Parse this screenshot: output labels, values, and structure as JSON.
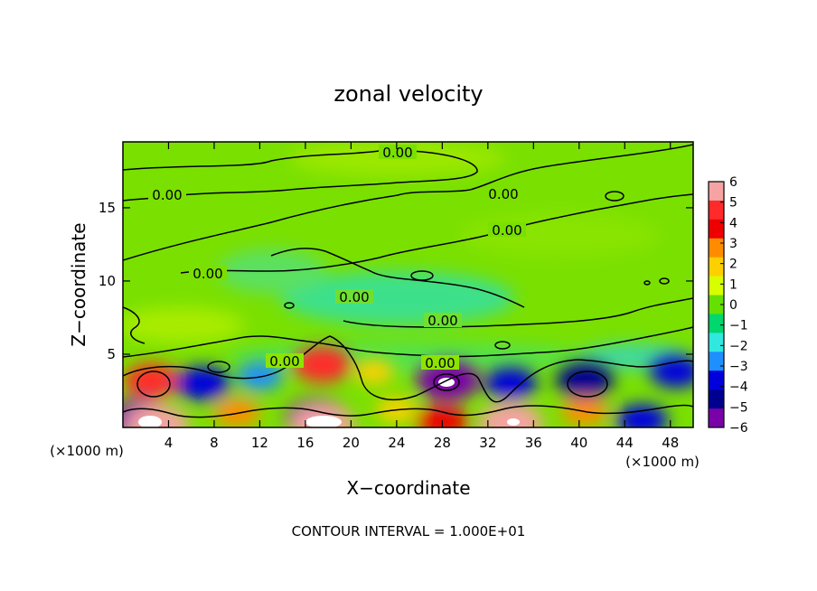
{
  "chart_data": {
    "type": "heatmap",
    "title": "zonal velocity",
    "xlabel": "X−coordinate",
    "ylabel": "Z−coordinate",
    "x_unit_label": "(×1000 m)",
    "y_unit_label": "(×1000 m)",
    "xlim": [
      0,
      50
    ],
    "ylim": [
      0,
      19.5
    ],
    "x_ticks": [
      "4",
      "8",
      "12",
      "16",
      "20",
      "24",
      "28",
      "32",
      "36",
      "40",
      "44",
      "48"
    ],
    "x_tick_values": [
      4,
      8,
      12,
      16,
      20,
      24,
      28,
      32,
      36,
      40,
      44,
      48
    ],
    "y_ticks": [
      "5",
      "10",
      "15"
    ],
    "y_tick_values": [
      5,
      10,
      15
    ],
    "colorbar": {
      "labels": [
        "6",
        "5",
        "4",
        "3",
        "2",
        "1",
        "0",
        "−1",
        "−2",
        "−3",
        "−4",
        "−5",
        "−6"
      ],
      "values": [
        6,
        5,
        4,
        3,
        2,
        1,
        0,
        -1,
        -2,
        -3,
        -4,
        -5,
        -6
      ],
      "colors": [
        "#f5a3a3",
        "#ff2a2a",
        "#ee0000",
        "#ff8c00",
        "#ffd000",
        "#d8ff00",
        "#66e000",
        "#00d76c",
        "#30e8e0",
        "#1e8fff",
        "#0000dd",
        "#000090",
        "#7a00a8"
      ]
    },
    "contour_label": "0.00",
    "contour_interval_text": "CONTOUR INTERVAL = 1.000E+01",
    "features": [
      {
        "x": 2.5,
        "z": 3.2,
        "value": 4.5
      },
      {
        "x": 7,
        "z": 3,
        "value": -4.5
      },
      {
        "x": 1.5,
        "z": 0.6,
        "value": -6
      },
      {
        "x": 3,
        "z": 0.2,
        "value": 6
      },
      {
        "x": 17.5,
        "z": 4.3,
        "value": 5
      },
      {
        "x": 17,
        "z": 0.6,
        "value": -6
      },
      {
        "x": 17.5,
        "z": 0.2,
        "value": 6
      },
      {
        "x": 28.5,
        "z": 3.2,
        "value": -6
      },
      {
        "x": 28,
        "z": 0.4,
        "value": 4
      },
      {
        "x": 34,
        "z": 3,
        "value": -4
      },
      {
        "x": 34,
        "z": 0.3,
        "value": 6
      },
      {
        "x": 40.5,
        "z": 3.2,
        "value": -5
      },
      {
        "x": 40.5,
        "z": 1.1,
        "value": 3
      },
      {
        "x": 48.5,
        "z": 3.8,
        "value": -4
      },
      {
        "x": 45.5,
        "z": 0.5,
        "value": -4
      },
      {
        "x": 22,
        "z": 3.8,
        "value": 2
      },
      {
        "x": 12,
        "z": 3.5,
        "value": -3
      },
      {
        "x": 24,
        "z": 1.2,
        "value": 2
      },
      {
        "x": 10,
        "z": 1.0,
        "value": 3
      }
    ]
  }
}
